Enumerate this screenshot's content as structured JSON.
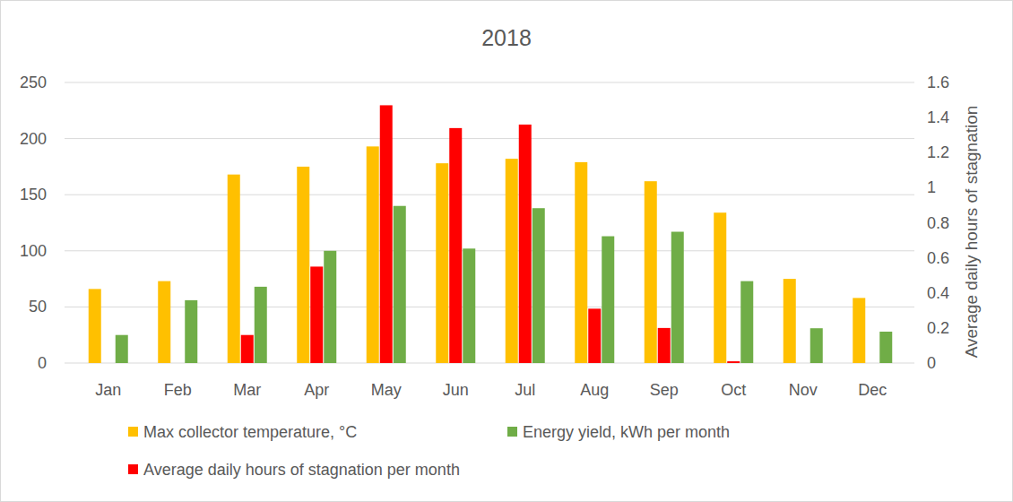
{
  "chart_data": {
    "type": "bar",
    "title": "2018",
    "categories": [
      "Jan",
      "Feb",
      "Mar",
      "Apr",
      "May",
      "Jun",
      "Jul",
      "Aug",
      "Sep",
      "Oct",
      "Nov",
      "Dec"
    ],
    "series": [
      {
        "name": "Max collector temperature, °C",
        "color": "#ffc000",
        "axis": "y",
        "values": [
          66,
          73,
          168,
          175,
          193,
          178,
          182,
          179,
          162,
          134,
          75,
          58
        ]
      },
      {
        "name": "Energy yield, kWh per month",
        "color": "#70ad47",
        "axis": "y",
        "values": [
          25,
          56,
          68,
          100,
          140,
          102,
          138,
          113,
          117,
          73,
          31,
          28
        ]
      },
      {
        "name": "Average daily hours of stagnation per month",
        "color": "#ff0000",
        "axis": "y2",
        "values": [
          0,
          0,
          0.16,
          0.55,
          1.47,
          1.34,
          1.36,
          0.31,
          0.2,
          0.01,
          0,
          0
        ]
      }
    ],
    "ylim": [
      0,
      250
    ],
    "yticks": [
      0,
      50,
      100,
      150,
      200,
      250
    ],
    "y2lim": [
      0,
      1.6
    ],
    "y2ticks": [
      0,
      0.2,
      0.4,
      0.6,
      0.8,
      1,
      1.2,
      1.4,
      1.6
    ],
    "y2label": "Average daily hours of stagnation",
    "grid": true,
    "legend": "bottom"
  }
}
